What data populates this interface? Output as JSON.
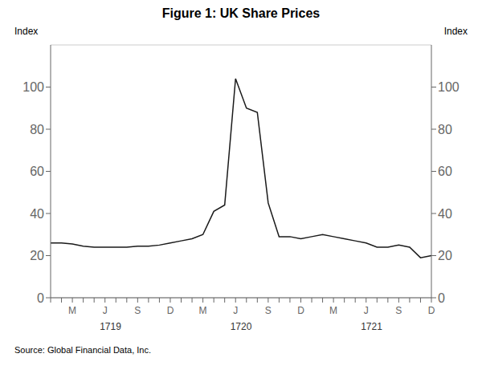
{
  "chart_data": {
    "type": "line",
    "title": "Figure 1: UK Share Prices",
    "ylabel": "Index",
    "y2label": "Index",
    "source": "Source: Global Financial Data, Inc.",
    "annotations": [
      "1719",
      "1720",
      "1721"
    ],
    "categories": [
      null,
      null,
      "M",
      null,
      null,
      "J",
      null,
      null,
      "S",
      null,
      null,
      "D",
      null,
      null,
      "M",
      null,
      null,
      "J",
      null,
      null,
      "S",
      null,
      null,
      "D",
      null,
      null,
      "M",
      null,
      null,
      "J",
      null,
      null,
      "S",
      null,
      null,
      "D"
    ],
    "values": [
      26,
      26,
      25.5,
      24.5,
      24,
      24,
      24,
      24,
      24.5,
      24.5,
      25,
      26,
      27,
      28,
      30,
      41,
      44,
      104,
      90,
      88,
      45,
      29,
      29,
      28,
      29,
      30,
      29,
      28,
      27,
      26,
      24,
      24,
      25,
      24,
      19,
      20
    ],
    "color": "#1a1a1a",
    "ylim": [
      0,
      120
    ],
    "yticks": [
      0,
      20,
      40,
      60,
      80,
      100
    ],
    "y2lim": [
      0,
      120
    ],
    "y2ticks": [
      0,
      20,
      40,
      60,
      80,
      100
    ],
    "grid": true
  }
}
